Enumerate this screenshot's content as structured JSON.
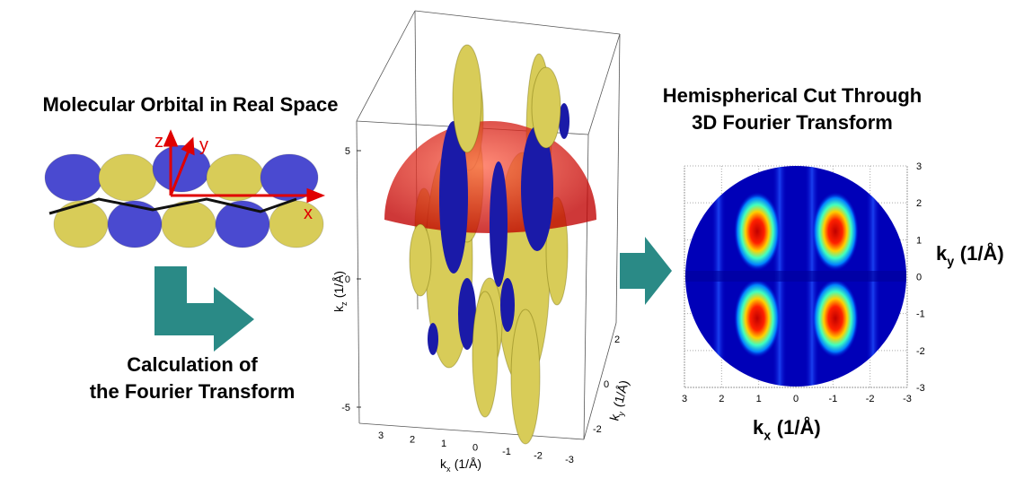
{
  "left": {
    "title": "Molecular Orbital in Real Space",
    "axes": [
      "z",
      "y",
      "x"
    ],
    "caption": [
      "Calculation of",
      "the Fourier Transform"
    ]
  },
  "plot3d": {
    "kz_ticks": [
      "5",
      "0",
      "-5"
    ],
    "kx_ticks": [
      "3",
      "2",
      "1",
      "0",
      "-1",
      "-2",
      "-3"
    ],
    "ky_ticks": [
      "2",
      "0",
      "-2"
    ],
    "kz_label": {
      "base": "k",
      "sub": "z",
      "unit": "(1/Å)"
    },
    "kx_label": {
      "base": "k",
      "sub": "x",
      "unit": "(1/Å)"
    },
    "ky_label": {
      "base": "k",
      "sub": "y",
      "unit": "(1/Å)"
    }
  },
  "right": {
    "title": [
      "Hemispherical Cut Through",
      "3D Fourier Transform"
    ],
    "x_ticks": [
      "3",
      "2",
      "1",
      "0",
      "-1",
      "-2",
      "-3"
    ],
    "y_ticks": [
      "3",
      "2",
      "1",
      "0",
      "-1",
      "-2",
      "-3"
    ],
    "x_label": {
      "base": "k",
      "sub": "x",
      "unit": "(1/Å)"
    },
    "y_label": {
      "base": "k",
      "sub": "y",
      "unit": "(1/Å)"
    }
  }
}
